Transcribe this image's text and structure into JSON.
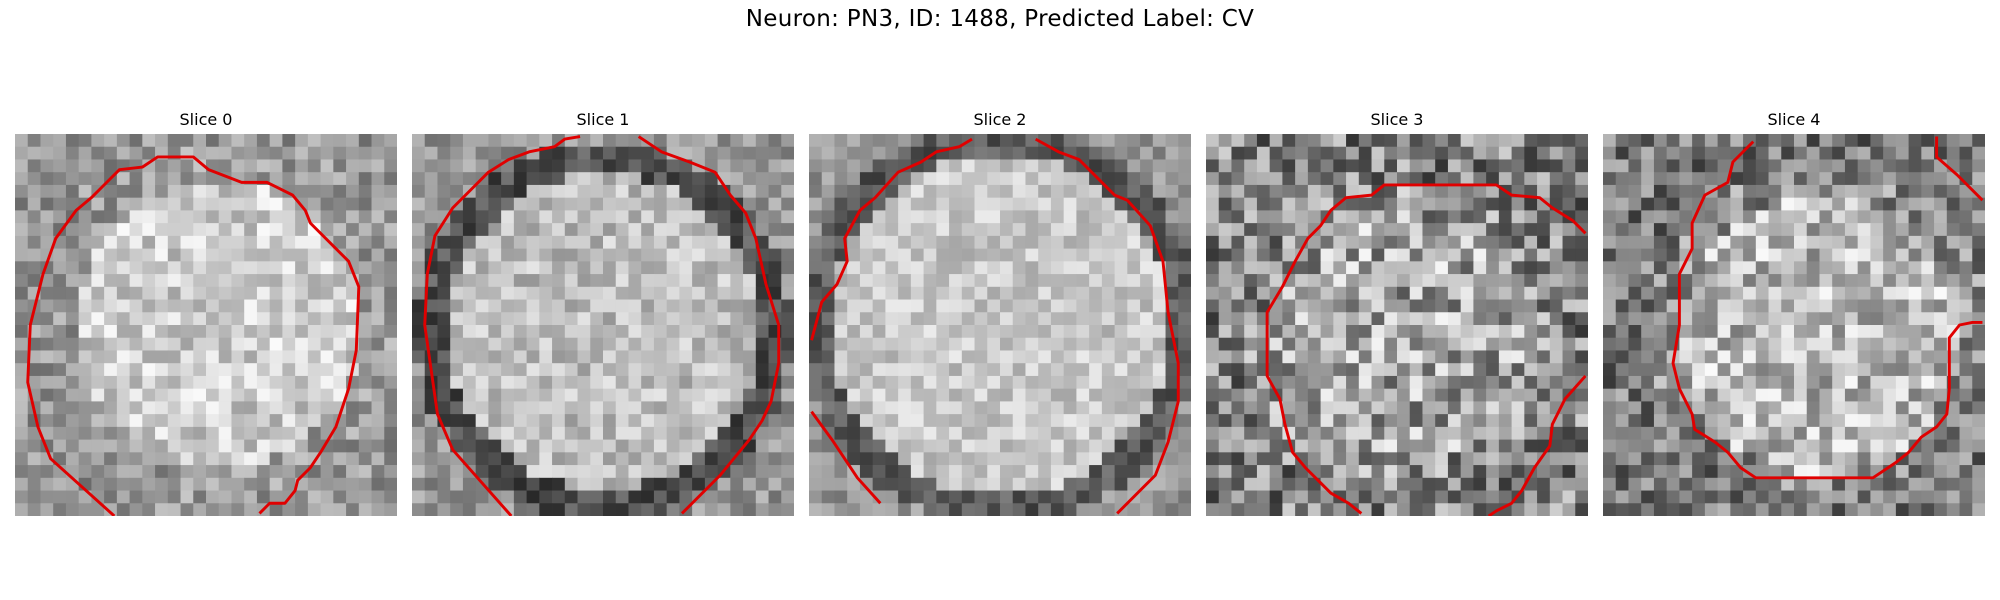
{
  "figure": {
    "title": "Neuron: PN3, ID: 1488, Predicted Label: CV"
  },
  "colors": {
    "contour": "#e00000",
    "background": "#ffffff"
  },
  "panels": [
    {
      "title": "Slice 0",
      "description": "grayscale pixelated micrograph of a round neuron cell body with red segmentation contour"
    },
    {
      "title": "Slice 1",
      "description": "grayscale pixelated micrograph of a round neuron cell body with dark membrane ring and red contour"
    },
    {
      "title": "Slice 2",
      "description": "grayscale pixelated micrograph of a round neuron cell body with dark membrane ring and red contour"
    },
    {
      "title": "Slice 3",
      "description": "noisy grayscale pixelated micrograph with a partial red contour"
    },
    {
      "title": "Slice 4",
      "description": "noisy grayscale pixelated micrograph with red contour"
    }
  ]
}
